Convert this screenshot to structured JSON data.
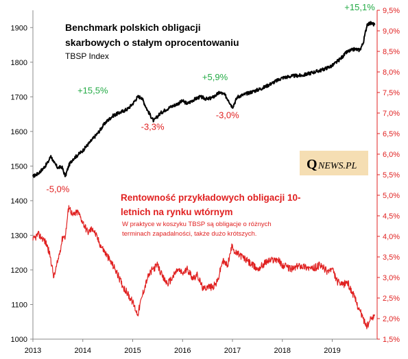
{
  "chart_data": {
    "type": "line",
    "title": "Benchmark polskich obligacji",
    "title_line2": "skarbowych o stałym oprocentowaniu",
    "subtitle": "TBSP Index",
    "x_ticks": [
      "2013",
      "2014",
      "2015",
      "2016",
      "2017",
      "2018",
      "2019"
    ],
    "xlim": [
      2013.0,
      2019.9
    ],
    "y_left": {
      "ticks": [
        "1000",
        "1100",
        "1200",
        "1300",
        "1400",
        "1500",
        "1600",
        "1700",
        "1800",
        "1900"
      ],
      "ylim": [
        1000,
        1950
      ]
    },
    "y_right": {
      "ticks": [
        "1,5%",
        "2,0%",
        "2,5%",
        "3,0%",
        "3,5%",
        "4,0%",
        "4,5%",
        "5,0%",
        "5,5%",
        "6,0%",
        "6,5%",
        "7,0%",
        "7,5%",
        "8,0%",
        "8,5%",
        "9,0%",
        "9,5%"
      ],
      "ylim": [
        1.5,
        9.5
      ]
    },
    "series": [
      {
        "name": "TBSP Index",
        "axis": "left",
        "color": "#000000",
        "x": [
          2013.0,
          2013.1,
          2013.2,
          2013.3,
          2013.36,
          2013.42,
          2013.5,
          2013.58,
          2013.65,
          2013.72,
          2013.8,
          2013.9,
          2014.0,
          2014.15,
          2014.3,
          2014.45,
          2014.6,
          2014.75,
          2014.9,
          2015.0,
          2015.1,
          2015.18,
          2015.3,
          2015.42,
          2015.55,
          2015.65,
          2015.75,
          2015.9,
          2016.0,
          2016.1,
          2016.2,
          2016.35,
          2016.5,
          2016.6,
          2016.75,
          2016.85,
          2016.92,
          2017.0,
          2017.1,
          2017.2,
          2017.4,
          2017.6,
          2017.8,
          2018.0,
          2018.2,
          2018.4,
          2018.6,
          2018.8,
          2019.0,
          2019.15,
          2019.3,
          2019.45,
          2019.55,
          2019.62,
          2019.7,
          2019.78,
          2019.85
        ],
        "y": [
          1470,
          1478,
          1492,
          1510,
          1530,
          1510,
          1495,
          1498,
          1470,
          1502,
          1520,
          1532,
          1545,
          1570,
          1595,
          1625,
          1645,
          1655,
          1665,
          1680,
          1700,
          1698,
          1660,
          1630,
          1652,
          1662,
          1670,
          1680,
          1688,
          1680,
          1690,
          1700,
          1693,
          1698,
          1713,
          1705,
          1690,
          1670,
          1700,
          1705,
          1715,
          1725,
          1740,
          1755,
          1760,
          1762,
          1770,
          1778,
          1790,
          1808,
          1830,
          1838,
          1835,
          1855,
          1910,
          1913,
          1908
        ]
      },
      {
        "name": "Rentowność przykładowych obligacji 10-letnich na rynku wtórnym",
        "axis": "right",
        "color": "#e02020",
        "x": [
          2013.0,
          2013.1,
          2013.2,
          2013.28,
          2013.35,
          2013.42,
          2013.5,
          2013.6,
          2013.65,
          2013.72,
          2013.8,
          2013.9,
          2014.0,
          2014.1,
          2014.2,
          2014.35,
          2014.5,
          2014.65,
          2014.8,
          2014.9,
          2015.0,
          2015.1,
          2015.2,
          2015.3,
          2015.4,
          2015.5,
          2015.6,
          2015.7,
          2015.8,
          2015.9,
          2016.0,
          2016.1,
          2016.2,
          2016.3,
          2016.42,
          2016.5,
          2016.6,
          2016.7,
          2016.8,
          2016.9,
          2017.0,
          2017.05,
          2017.15,
          2017.3,
          2017.5,
          2017.7,
          2017.9,
          2018.0,
          2018.1,
          2018.2,
          2018.35,
          2018.5,
          2018.6,
          2018.75,
          2018.9,
          2019.0,
          2019.1,
          2019.2,
          2019.3,
          2019.45,
          2019.55,
          2019.62,
          2019.7,
          2019.78,
          2019.85
        ],
        "y": [
          3.9,
          4.05,
          3.95,
          3.8,
          3.5,
          3.0,
          3.4,
          4.0,
          4.0,
          4.75,
          4.5,
          4.6,
          4.35,
          4.1,
          4.2,
          3.8,
          3.5,
          3.2,
          2.8,
          2.6,
          2.4,
          2.1,
          2.6,
          3.0,
          3.2,
          3.3,
          3.0,
          2.85,
          3.0,
          3.2,
          3.1,
          3.2,
          3.0,
          3.05,
          2.7,
          2.8,
          2.75,
          2.9,
          3.4,
          3.3,
          3.8,
          3.6,
          3.55,
          3.4,
          3.2,
          3.4,
          3.45,
          3.3,
          3.25,
          3.2,
          3.3,
          3.25,
          3.2,
          3.3,
          3.15,
          3.2,
          2.9,
          2.8,
          2.9,
          2.5,
          2.2,
          2.0,
          1.8,
          2.0,
          2.1
        ]
      }
    ],
    "annotations": [
      {
        "text": "+15,5%",
        "x": 2014.2,
        "y": 1710,
        "color": "#22aa44"
      },
      {
        "text": "-3,3%",
        "x": 2015.4,
        "y": 1605,
        "color": "#e02020"
      },
      {
        "text": "+5,9%",
        "x": 2016.65,
        "y": 1748,
        "color": "#22aa44"
      },
      {
        "text": "-3,0%",
        "x": 2016.9,
        "y": 1638,
        "color": "#e02020"
      },
      {
        "text": "-5,0%",
        "x": 2013.5,
        "y": 1425,
        "color": "#e02020"
      },
      {
        "text": "+15,1%",
        "x": 2019.55,
        "y": 1950,
        "color": "#22aa44"
      }
    ],
    "yield_title_line1": "Rentowność przykładowych obligacji 10-",
    "yield_title_line2": "letnich na rynku wtórnym",
    "yield_note_line1": "W praktyce w koszyku TBSP są obligacje o różnych",
    "yield_note_line2": "terminach zapadalności, także dużo krótszych."
  },
  "logo": {
    "letter": "Q",
    "rest": "NEWS.PL",
    "bg_color": "#f5deb3"
  }
}
